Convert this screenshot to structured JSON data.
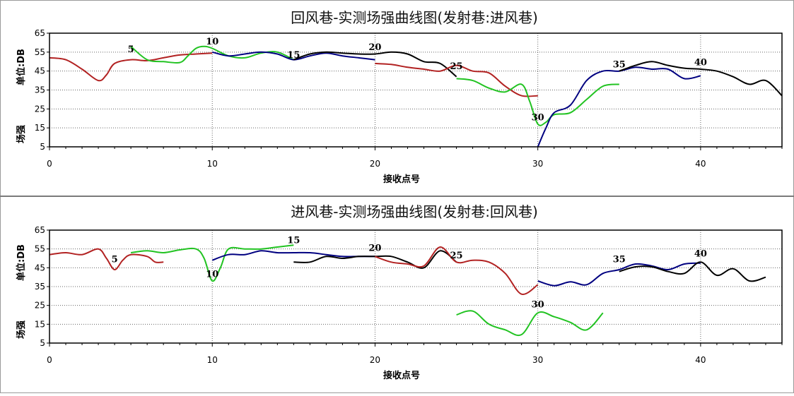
{
  "chart_data": [
    {
      "type": "line",
      "title": "回风巷-实测场强曲线图(发射巷:进风巷)",
      "xlabel": "接收点号",
      "ylabel_top": "单位:DB",
      "ylabel_bottom": "场强",
      "xlim": [
        0,
        45
      ],
      "ylim": [
        5,
        65
      ],
      "xticks": [
        0,
        10,
        20,
        30,
        40
      ],
      "yticks": [
        5,
        15,
        25,
        35,
        45,
        55,
        65
      ],
      "grid": true,
      "annotations": [
        {
          "text": "5",
          "x": 5,
          "y": 55
        },
        {
          "text": "10",
          "x": 10,
          "y": 59
        },
        {
          "text": "15",
          "x": 15,
          "y": 52
        },
        {
          "text": "20",
          "x": 20,
          "y": 56
        },
        {
          "text": "25",
          "x": 25,
          "y": 46
        },
        {
          "text": "30",
          "x": 30,
          "y": 19
        },
        {
          "text": "35",
          "x": 35,
          "y": 47
        },
        {
          "text": "40",
          "x": 40,
          "y": 48
        }
      ],
      "series": [
        {
          "color": "#b22222",
          "points": [
            [
              0,
              52
            ],
            [
              1,
              51
            ],
            [
              2,
              46
            ],
            [
              3,
              40
            ],
            [
              3.5,
              43
            ],
            [
              4,
              49
            ],
            [
              5,
              51
            ],
            [
              6,
              50.5
            ],
            [
              7,
              52
            ],
            [
              8,
              53.5
            ],
            [
              9,
              54
            ],
            [
              10,
              54.5
            ]
          ]
        },
        {
          "color": "#22c322",
          "points": [
            [
              5,
              58
            ],
            [
              6,
              51
            ],
            [
              7,
              50
            ],
            [
              8,
              49.5
            ],
            [
              8.5,
              53
            ],
            [
              9,
              57
            ],
            [
              9.5,
              58
            ],
            [
              10,
              57
            ],
            [
              11,
              53
            ],
            [
              12,
              52
            ],
            [
              13,
              54.5
            ],
            [
              14,
              55
            ],
            [
              15,
              51
            ]
          ]
        },
        {
          "color": "#000080",
          "points": [
            [
              10,
              55
            ],
            [
              11,
              53
            ],
            [
              12,
              54
            ],
            [
              13,
              55
            ],
            [
              14,
              54
            ],
            [
              15,
              51
            ],
            [
              16,
              53
            ],
            [
              17,
              54.5
            ],
            [
              18,
              53
            ],
            [
              19,
              52
            ],
            [
              20,
              51
            ]
          ]
        },
        {
          "color": "#000000",
          "points": [
            [
              15,
              51
            ],
            [
              16,
              54
            ],
            [
              17,
              55
            ],
            [
              18,
              54.5
            ],
            [
              19,
              54
            ],
            [
              20,
              54
            ],
            [
              21,
              55
            ],
            [
              22,
              54
            ],
            [
              23,
              50
            ],
            [
              24,
              49
            ],
            [
              25,
              42
            ]
          ]
        },
        {
          "color": "#b22222",
          "points": [
            [
              20,
              49
            ],
            [
              21,
              48.5
            ],
            [
              22,
              47
            ],
            [
              23,
              46
            ],
            [
              24,
              45
            ],
            [
              25,
              48
            ],
            [
              26,
              45
            ],
            [
              27,
              44
            ],
            [
              28,
              37
            ],
            [
              29,
              32
            ],
            [
              30,
              32
            ]
          ]
        },
        {
          "color": "#22c322",
          "points": [
            [
              25,
              41
            ],
            [
              26,
              40
            ],
            [
              27,
              36
            ],
            [
              28,
              34
            ],
            [
              29,
              38
            ],
            [
              29.5,
              29
            ],
            [
              30,
              17
            ],
            [
              30.5,
              18
            ],
            [
              31,
              22
            ],
            [
              32,
              23
            ],
            [
              33,
              30
            ],
            [
              34,
              37
            ],
            [
              35,
              38
            ]
          ]
        },
        {
          "color": "#000080",
          "points": [
            [
              30,
              5
            ],
            [
              30.5,
              15
            ],
            [
              31,
              23
            ],
            [
              32,
              27
            ],
            [
              33,
              40
            ],
            [
              34,
              45
            ],
            [
              35,
              45
            ],
            [
              36,
              47
            ],
            [
              37,
              46
            ],
            [
              38,
              46
            ],
            [
              39,
              41
            ],
            [
              40,
              42.5
            ]
          ]
        },
        {
          "color": "#000000",
          "points": [
            [
              35,
              45
            ],
            [
              36,
              48
            ],
            [
              37,
              50
            ],
            [
              38,
              48
            ],
            [
              39,
              46.5
            ],
            [
              40,
              46
            ],
            [
              41,
              45
            ],
            [
              42,
              42
            ],
            [
              43,
              38
            ],
            [
              44,
              40
            ],
            [
              45,
              32
            ]
          ]
        }
      ]
    },
    {
      "type": "line",
      "title": "进风巷-实测场强曲线图(发射巷:回风巷)",
      "xlabel": "接收点号",
      "ylabel_top": "单位:DB",
      "ylabel_bottom": "场强",
      "xlim": [
        0,
        45
      ],
      "ylim": [
        5,
        65
      ],
      "xticks": [
        0,
        10,
        20,
        30,
        40
      ],
      "yticks": [
        5,
        15,
        25,
        35,
        45,
        55,
        65
      ],
      "grid": true,
      "annotations": [
        {
          "text": "5",
          "x": 4,
          "y": 48
        },
        {
          "text": "10",
          "x": 10,
          "y": 40
        },
        {
          "text": "15",
          "x": 15,
          "y": 58
        },
        {
          "text": "20",
          "x": 20,
          "y": 54
        },
        {
          "text": "25",
          "x": 25,
          "y": 50
        },
        {
          "text": "30",
          "x": 30,
          "y": 24
        },
        {
          "text": "35",
          "x": 35,
          "y": 48
        },
        {
          "text": "40",
          "x": 40,
          "y": 51
        }
      ],
      "series": [
        {
          "color": "#b22222",
          "points": [
            [
              0,
              52
            ],
            [
              1,
              53
            ],
            [
              2,
              52
            ],
            [
              3,
              55
            ],
            [
              3.5,
              50
            ],
            [
              4,
              44
            ],
            [
              4.5,
              49
            ],
            [
              5,
              52
            ],
            [
              6,
              51
            ],
            [
              6.5,
              48
            ],
            [
              7,
              48
            ]
          ]
        },
        {
          "color": "#22c322",
          "points": [
            [
              5,
              53
            ],
            [
              6,
              54
            ],
            [
              7,
              53
            ],
            [
              8,
              54.5
            ],
            [
              9,
              55
            ],
            [
              9.5,
              50
            ],
            [
              10,
              38
            ],
            [
              10.5,
              45
            ],
            [
              11,
              55
            ],
            [
              12,
              55
            ],
            [
              13,
              55
            ],
            [
              14,
              56
            ],
            [
              15,
              57
            ]
          ]
        },
        {
          "color": "#000080",
          "points": [
            [
              10,
              49
            ],
            [
              11,
              52
            ],
            [
              12,
              52
            ],
            [
              13,
              54
            ],
            [
              14,
              53
            ],
            [
              15,
              53
            ],
            [
              16,
              53
            ],
            [
              17,
              52
            ],
            [
              18,
              51
            ],
            [
              19,
              51
            ],
            [
              20,
              51
            ]
          ]
        },
        {
          "color": "#000000",
          "points": [
            [
              15,
              48
            ],
            [
              16,
              48
            ],
            [
              17,
              51
            ],
            [
              18,
              50
            ],
            [
              19,
              51
            ],
            [
              20,
              51
            ],
            [
              21,
              51
            ],
            [
              22,
              48
            ],
            [
              23,
              45
            ],
            [
              24,
              54
            ],
            [
              25,
              48
            ]
          ]
        },
        {
          "color": "#b22222",
          "points": [
            [
              20,
              51
            ],
            [
              21,
              48
            ],
            [
              22,
              47
            ],
            [
              23,
              46
            ],
            [
              24,
              56
            ],
            [
              25,
              48
            ],
            [
              26,
              49
            ],
            [
              27,
              48
            ],
            [
              28,
              42
            ],
            [
              29,
              31
            ],
            [
              30,
              36
            ]
          ]
        },
        {
          "color": "#22c322",
          "points": [
            [
              25,
              20
            ],
            [
              26,
              22
            ],
            [
              27,
              15
            ],
            [
              28,
              12
            ],
            [
              29,
              9.5
            ],
            [
              30,
              21
            ],
            [
              31,
              19
            ],
            [
              32,
              16
            ],
            [
              33,
              12
            ],
            [
              34,
              21
            ]
          ]
        },
        {
          "color": "#000080",
          "points": [
            [
              30,
              38
            ],
            [
              31,
              35.5
            ],
            [
              32,
              37.5
            ],
            [
              33,
              36
            ],
            [
              34,
              42
            ],
            [
              35,
              44
            ],
            [
              36,
              47
            ],
            [
              37,
              46
            ],
            [
              38,
              44
            ],
            [
              39,
              47
            ],
            [
              40,
              47.5
            ]
          ]
        },
        {
          "color": "#000000",
          "points": [
            [
              35,
              43
            ],
            [
              36,
              45.5
            ],
            [
              37,
              45.5
            ],
            [
              38,
              43
            ],
            [
              39,
              42
            ],
            [
              40,
              48
            ],
            [
              41,
              41
            ],
            [
              42,
              44.5
            ],
            [
              43,
              38
            ],
            [
              44,
              40
            ]
          ]
        }
      ]
    }
  ]
}
